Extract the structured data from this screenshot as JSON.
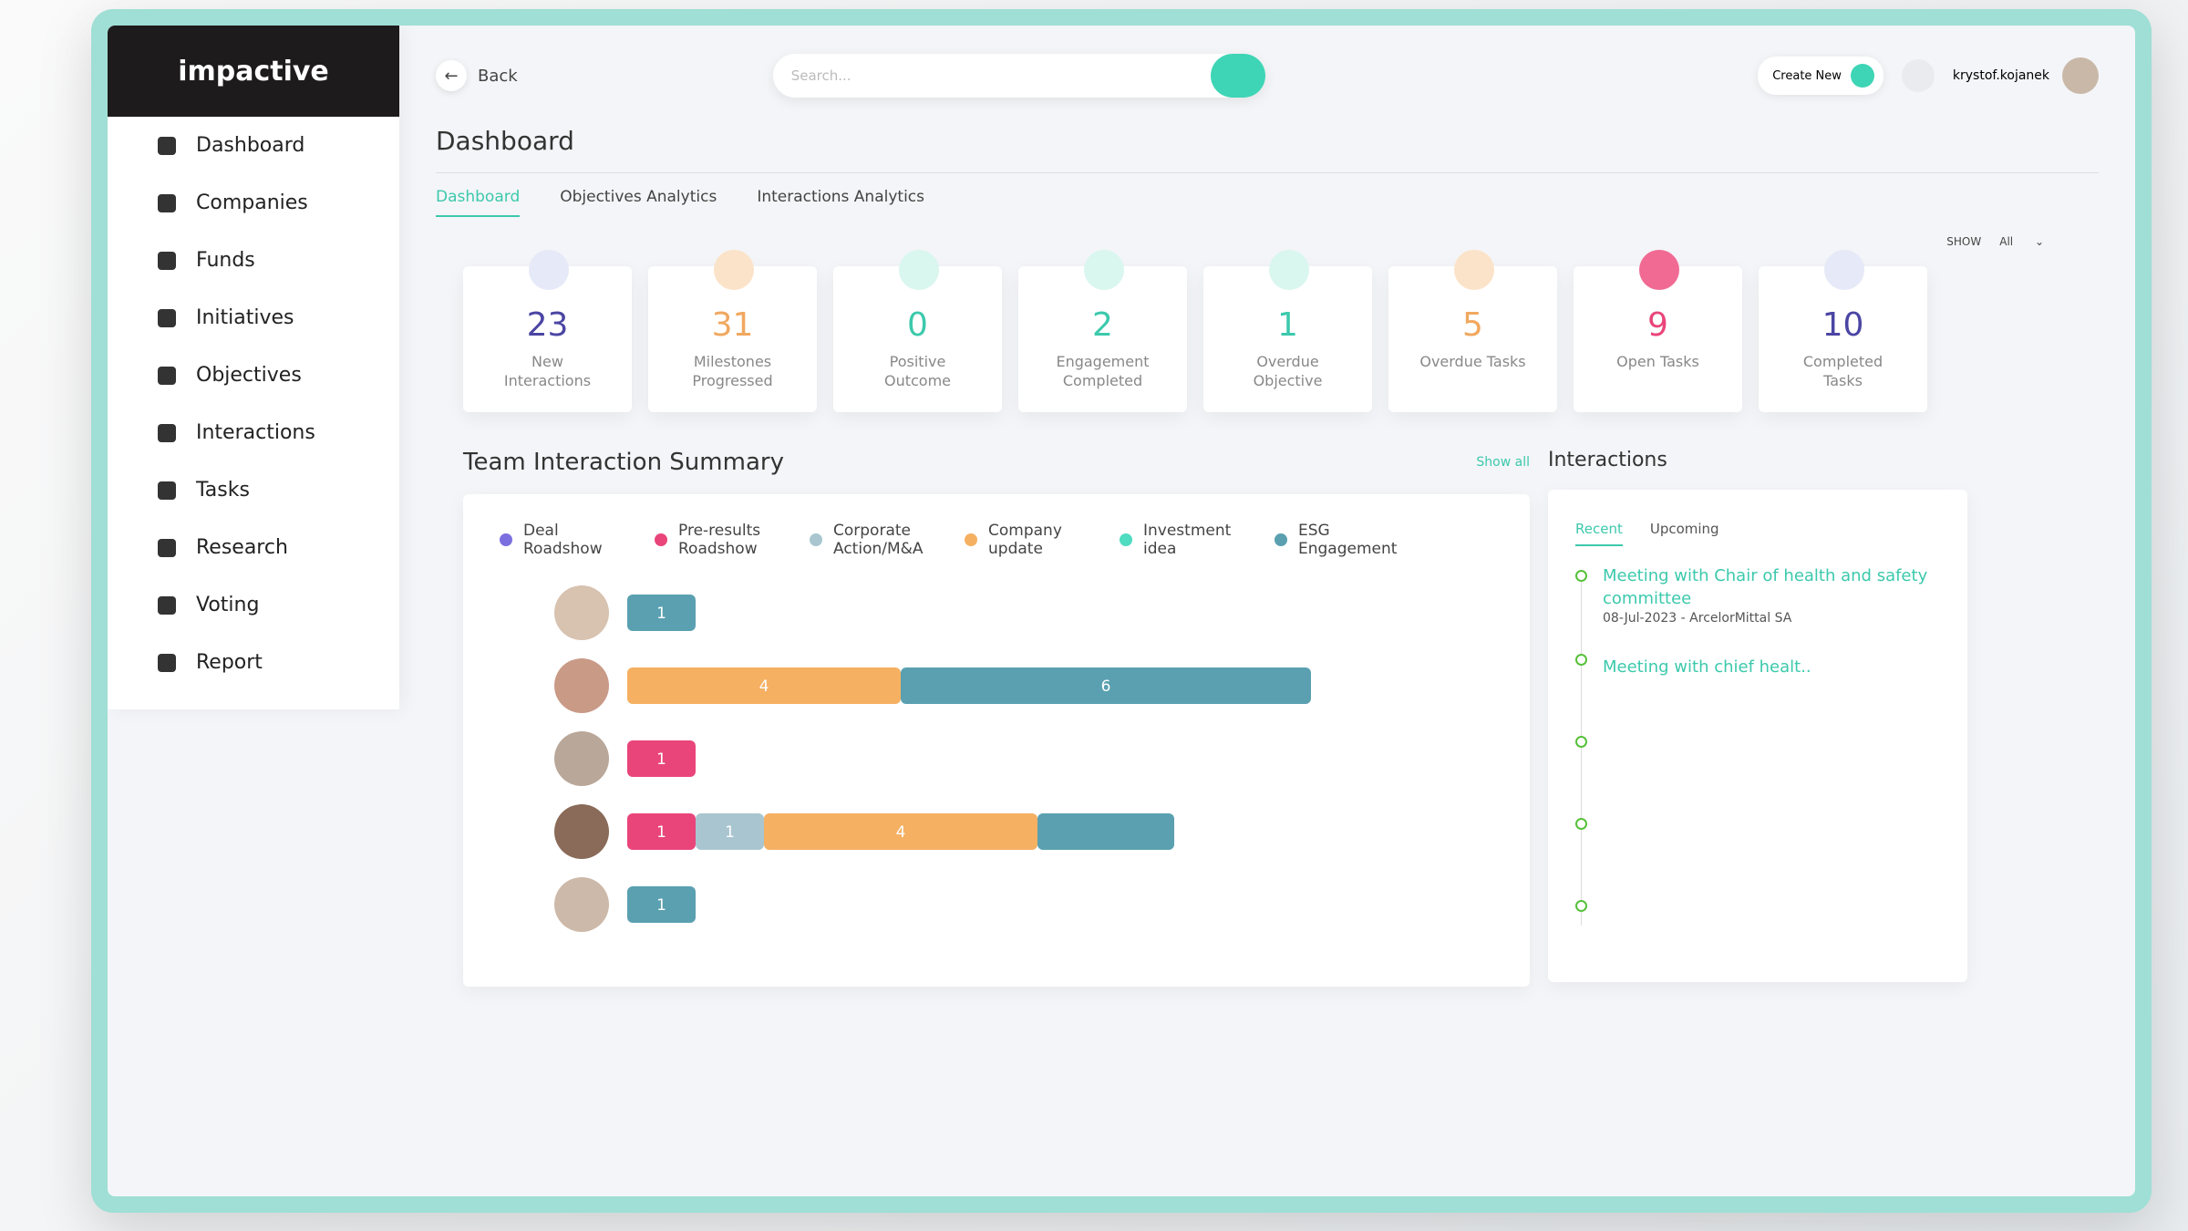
{
  "sidebar": {
    "logo": "impactive",
    "nav": [
      "Dashboard",
      "Companies",
      "Funds",
      "Initiatives",
      "Objectives",
      "Interactions",
      "Tasks",
      "Research",
      "Voting",
      "Report"
    ]
  },
  "header": {
    "back": "Back",
    "search_placeholder": "Search...",
    "create_new": "Create New",
    "user": "krystof.kojanek"
  },
  "page": {
    "title": "Dashboard",
    "tabs": [
      "Dashboard",
      "Objectives Analytics",
      "Interactions Analytics"
    ],
    "show_label": "SHOW",
    "show_value": "All"
  },
  "stats": [
    {
      "value": 23,
      "label": "New Interactions",
      "color": "#4b45a3",
      "icon_bg": "#e6e9f7"
    },
    {
      "value": 31,
      "label": "Milestones Progressed",
      "color": "#f0a860",
      "icon_bg": "#fbe3c9"
    },
    {
      "value": 0,
      "label": "Positive Outcome",
      "color": "#3cc9ac",
      "icon_bg": "#d9f6ef"
    },
    {
      "value": 2,
      "label": "Engagement Completed",
      "color": "#3cc9ac",
      "icon_bg": "#d9f6ef"
    },
    {
      "value": 1,
      "label": "Overdue Objective",
      "color": "#3cc9ac",
      "icon_bg": "#d9f6ef"
    },
    {
      "value": 5,
      "label": "Overdue Tasks",
      "color": "#f0a860",
      "icon_bg": "#fbe3c9"
    },
    {
      "value": 9,
      "label": "Open Tasks",
      "color": "#e9457a",
      "icon_bg": "#f06a93"
    },
    {
      "value": 10,
      "label": "Completed Tasks",
      "color": "#4b45a3",
      "icon_bg": "#e6e9f7"
    }
  ],
  "chart_data": {
    "type": "bar",
    "orientation": "horizontal",
    "stacked": true,
    "title": "Team Interaction Summary",
    "show_all": "Show all",
    "categories": [
      null,
      null,
      null,
      null,
      null
    ],
    "xlim": [
      0,
      12
    ],
    "series": [
      {
        "name": "Deal Roadshow",
        "color": "#7b6fe0",
        "values": [
          null,
          null,
          null,
          null,
          null
        ]
      },
      {
        "name": "Pre-results Roadshow",
        "color": "#e9457a",
        "values": [
          null,
          null,
          1,
          1,
          null
        ]
      },
      {
        "name": "Corporate Action/M&A",
        "color": "#a9c6d0",
        "values": [
          null,
          null,
          null,
          1,
          null
        ]
      },
      {
        "name": "Company update",
        "color": "#f5b062",
        "values": [
          null,
          4,
          null,
          4,
          null
        ]
      },
      {
        "name": "Investment idea",
        "color": "#4fdcc0",
        "values": [
          null,
          null,
          null,
          null,
          null
        ]
      },
      {
        "name": "ESG Engagement",
        "color": "#5aa0b0",
        "values": [
          1,
          6,
          null,
          2,
          1
        ],
        "value_labels": [
          "1",
          "6",
          null,
          null,
          "1"
        ]
      }
    ]
  },
  "interactions": {
    "title": "Interactions",
    "tabs": [
      "Recent",
      "Upcoming"
    ],
    "items": [
      {
        "title": "Meeting with Chair of health and safety committee",
        "meta": "08-Jul-2023 - ArcelorMittal SA"
      },
      {
        "title": "Meeting with chief healt.."
      }
    ]
  }
}
